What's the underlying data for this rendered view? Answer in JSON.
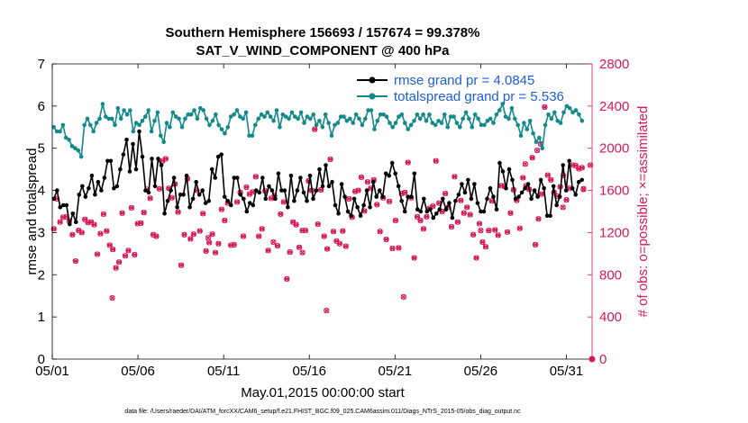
{
  "chart_data": {
    "type": "line",
    "title_lines": [
      "Southern Hemisphere 156693 / 157674 = 99.378%",
      "SAT_V_WIND_COMPONENT @ 400 hPa"
    ],
    "xlabel": "May.01,2015 00:00:00 start",
    "ylabel_left": "rmse and totalspread",
    "ylabel_right": "# of obs: o=possible; ×=assimilated",
    "footnote": "data file: /Users/raeder/DAI/ATM_forcXX/CAM6_setup/f.e21.FHIST_BGC.f09_025.CAM6assim.011/Diags_NTrS_2015-05/obs_diag_output.nc",
    "x_ticks": [
      "05/01",
      "05/06",
      "05/11",
      "05/16",
      "05/21",
      "05/26",
      "05/31"
    ],
    "x_tick_days": [
      0,
      5,
      10,
      15,
      20,
      25,
      30
    ],
    "x_range_days": [
      0,
      31.5
    ],
    "ylim_left": [
      0,
      7
    ],
    "yticks_left": [
      0,
      1,
      2,
      3,
      4,
      5,
      6,
      7
    ],
    "ylim_right": [
      0,
      2800
    ],
    "yticks_right": [
      0,
      400,
      800,
      1200,
      1600,
      2000,
      2400,
      2800
    ],
    "legend_position": "top-right",
    "colors": {
      "rmse": "#000000",
      "spread": "#138a8a",
      "obs": "#d61a5a"
    },
    "series": [
      {
        "name": "rmse grand pr = 4.0845",
        "values": [
          3.8,
          4.0,
          3.6,
          3.65,
          3.65,
          3.2,
          3.45,
          3.25,
          3.9,
          4.1,
          3.85,
          4.05,
          4.35,
          3.9,
          4.2,
          4.0,
          4.3,
          4.7,
          4.7,
          4.05,
          4.1,
          4.5,
          4.85,
          5.2,
          4.45,
          5.1,
          4.5,
          5.4,
          4.8,
          4.0,
          3.95,
          4.75,
          4.1,
          4.75,
          4.6,
          3.45,
          3.75,
          4.0,
          4.3,
          3.6,
          3.9,
          3.9,
          4.35,
          3.6,
          3.8,
          4.2,
          3.9,
          4.0,
          3.7,
          3.75,
          4.5,
          4.3,
          4.8,
          4.85,
          3.85,
          3.75,
          3.65,
          4.3,
          4.3,
          3.9,
          3.8,
          3.5,
          3.7,
          3.65,
          4.0,
          3.95,
          4.3,
          3.8,
          4.1,
          4.0,
          3.8,
          4.4,
          4.0,
          4.0,
          3.6,
          4.35,
          3.75,
          4.0,
          4.3,
          3.95,
          3.75,
          4.35,
          3.8,
          4.0,
          4.5,
          4.1,
          4.6,
          4.1,
          4.2,
          3.65,
          3.45,
          4.15,
          3.85,
          3.5,
          3.4,
          3.8,
          3.6,
          3.4,
          3.65,
          4.0,
          3.6,
          4.2,
          3.85,
          4.0,
          3.85,
          4.4,
          4.35,
          4.65,
          4.4,
          4.1,
          3.75,
          3.5,
          3.85,
          3.85,
          4.4,
          3.55,
          3.5,
          3.8,
          3.5,
          3.55,
          3.35,
          3.45,
          3.55,
          3.8,
          3.55,
          3.7,
          3.35,
          3.75,
          3.9,
          4.15,
          3.95,
          4.25,
          3.8,
          4.15,
          3.7,
          3.5,
          3.5,
          3.8,
          4.05,
          3.85,
          3.55,
          4.65,
          4.45,
          4.05,
          4.5,
          4.25,
          3.8,
          3.85,
          3.95,
          4.05,
          4.15,
          3.8,
          4.0,
          3.85,
          4.25,
          4.05,
          3.4,
          3.4,
          4.1,
          3.65,
          3.85,
          4.6,
          4.0,
          4.7,
          4.05,
          3.9,
          4.2,
          4.25
        ]
      },
      {
        "name": "totalspread grand pr = 5.536",
        "values": [
          5.5,
          5.4,
          5.4,
          5.55,
          5.25,
          5.2,
          5.05,
          5.0,
          4.95,
          4.8,
          5.55,
          5.7,
          5.55,
          5.4,
          5.6,
          5.7,
          6.05,
          5.75,
          5.7,
          5.7,
          5.55,
          5.95,
          5.7,
          5.9,
          5.8,
          5.9,
          5.4,
          5.6,
          5.55,
          5.65,
          5.75,
          5.9,
          5.4,
          5.65,
          5.85,
          5.3,
          5.15,
          5.6,
          5.5,
          5.85,
          5.75,
          5.7,
          5.5,
          5.7,
          5.8,
          5.8,
          5.9,
          5.7,
          5.95,
          5.9,
          5.7,
          5.55,
          5.65,
          5.8,
          5.55,
          5.45,
          5.35,
          5.5,
          5.75,
          5.8,
          5.9,
          5.75,
          5.7,
          5.85,
          5.3,
          5.3,
          5.55,
          5.7,
          5.8,
          5.75,
          5.85,
          5.75,
          5.65,
          5.9,
          5.5,
          5.8,
          5.75,
          5.7,
          5.85,
          5.75,
          5.7,
          5.85,
          5.6,
          5.75,
          5.7,
          5.8,
          5.55,
          5.65,
          5.5,
          5.8,
          5.6,
          5.3,
          5.55,
          5.6,
          5.75,
          5.75,
          5.65,
          5.7,
          5.6,
          5.8,
          5.7,
          5.55,
          5.7,
          5.9,
          5.9,
          5.45,
          5.65,
          5.8,
          5.8,
          5.75,
          5.6,
          5.5,
          5.6,
          5.75,
          5.8,
          5.6,
          5.45,
          5.55,
          5.65,
          5.8,
          5.7,
          5.8,
          5.65,
          5.8,
          5.6,
          5.55,
          5.65,
          5.6,
          5.8,
          5.5,
          5.75,
          5.75,
          5.6,
          5.5,
          5.7,
          5.85,
          5.7,
          5.5,
          5.8,
          5.7,
          5.55,
          5.55,
          5.65,
          5.7,
          5.6,
          5.8,
          5.9,
          6.05,
          5.75,
          5.7,
          5.95,
          5.7,
          5.55,
          5.3,
          5.6,
          5.45,
          5.65,
          5.35,
          5.15,
          5.25,
          5.0,
          5.55,
          5.8,
          5.7,
          5.85,
          5.65,
          5.6,
          5.85,
          6.0,
          5.95,
          5.85,
          5.9,
          5.8,
          5.65
        ]
      },
      {
        "name": "# of obs",
        "values": [
          1235,
          1520,
          1300,
          1345,
          1350,
          1310,
          1180,
          930,
          1220,
          1200,
          1325,
          1295,
          1300,
          1275,
          995,
          1190,
          1375,
          1215,
          1080,
          1040,
          865,
          920,
          1385,
          980,
          1030,
          1435,
          990,
          1285,
          1290,
          1390,
          1610,
          1525,
          1180,
          1165,
          1615,
          1880,
          1900,
          1620,
          1530,
          1660,
          1395,
          890,
          1180,
          1710,
          1140,
          1185,
          1600,
          1215,
          1380,
          1025,
          1105,
          1185,
          1010,
          1095,
          1420,
          1315,
          1480,
          1080,
          1085,
          1490,
          1580,
          1165,
          1630,
          1565,
          1585,
          1730,
          1165,
          1235,
          1595,
          1030,
          1525,
          1550,
          1075,
          1375,
          1490,
          760,
          1015,
          1300,
          1275,
          1060,
          1220,
          1220,
          1690,
          1600,
          2180,
          1280,
          1605,
          1165,
          1045,
          1895,
          1210,
          1120,
          1095,
          1215,
          1070,
          1520,
          1345,
          1590,
          1600,
          1725,
          1405,
          1680,
          1620,
          1700,
          1465,
          1210,
          1530,
          1135,
          1495,
          1050,
          1315,
          1055,
          1570,
          1580,
          1865,
          1530,
          960,
          1350,
          1315,
          1235,
          1350,
          1430,
          1450,
          1880,
          1480,
          1400,
          1570,
          1440,
          1255,
          1730,
          1300,
          1505,
          1385,
          1440,
          1370,
          1180,
          960,
          1285,
          1110,
          1065,
          1220,
          1500,
          1225,
          1175,
          1645,
          1640,
          1205,
          1385,
          1605,
          1505,
          1240,
          1720,
          1645,
          1610,
          1910,
          1085,
          1330,
          1565,
          2390,
          1745,
          1700,
          1580,
          1545,
          1635,
          1740,
          1510,
          1620,
          1840,
          1835,
          1805,
          1815
        ]
      }
    ],
    "obs_outliers": [
      {
        "x_day": 3.5,
        "value": 580
      },
      {
        "x_day": 9.1,
        "value": 1150
      },
      {
        "x_day": 12.9,
        "value": 1110
      },
      {
        "x_day": 14.6,
        "value": 1010
      },
      {
        "x_day": 16.0,
        "value": 460
      },
      {
        "x_day": 20.5,
        "value": 590
      },
      {
        "x_day": 25.0,
        "value": 1220
      },
      {
        "x_day": 27.6,
        "value": 1850
      },
      {
        "x_day": 28.3,
        "value": 1980
      },
      {
        "x_day": 28.5,
        "value": 2040
      },
      {
        "x_day": 29.8,
        "value": 1440
      },
      {
        "x_day": 31.0,
        "value": 1610
      },
      {
        "x_day": 31.4,
        "value": 1840
      },
      {
        "x_day": 31.0,
        "value": 1615
      }
    ],
    "grid": false
  }
}
